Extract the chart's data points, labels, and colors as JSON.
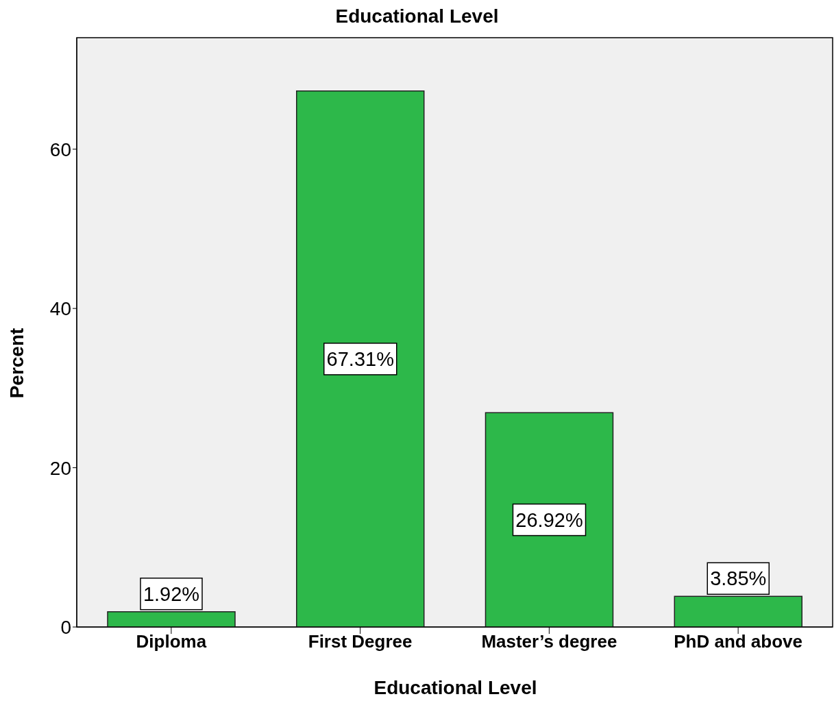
{
  "chart_data": {
    "type": "bar",
    "title": "Educational Level",
    "xlabel": "Educational Level",
    "ylabel": "Percent",
    "categories": [
      "Diploma",
      "First Degree",
      "Master’s degree",
      "PhD and above"
    ],
    "values": [
      1.92,
      67.31,
      26.92,
      3.85
    ],
    "value_labels": [
      "1.92%",
      "67.31%",
      "26.92%",
      "3.85%"
    ],
    "color": "#2db84a",
    "ylim": [
      0,
      74
    ],
    "yticks": [
      0,
      20,
      40,
      60
    ],
    "grid": false,
    "legend": false
  }
}
